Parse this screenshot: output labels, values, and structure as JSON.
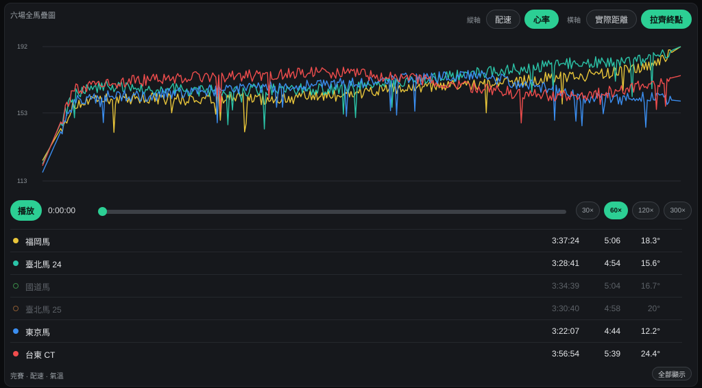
{
  "header": {
    "title": "六場全馬疊圖",
    "y_axis_label": "縱軸",
    "y_options": [
      "配速",
      "心率"
    ],
    "y_active": "心率",
    "x_axis_label": "橫軸",
    "x_options": [
      "實際距離",
      "拉齊終點"
    ],
    "x_active": "拉齊終點"
  },
  "playback": {
    "play_label": "播放",
    "time": "0:00:00",
    "progress": 0,
    "speeds": [
      "30×",
      "60×",
      "120×",
      "300×"
    ],
    "active_speed": "60×"
  },
  "races": [
    {
      "name": "福岡馬",
      "time": "3:37:24",
      "pace": "5:06",
      "temp": "18.3°",
      "color": "#e8c53a",
      "visible": true
    },
    {
      "name": "臺北馬 24",
      "time": "3:28:41",
      "pace": "4:54",
      "temp": "15.6°",
      "color": "#2bc4a8",
      "visible": true
    },
    {
      "name": "國道馬",
      "time": "3:34:39",
      "pace": "5:04",
      "temp": "16.7°",
      "color": "#3a8a48",
      "visible": false
    },
    {
      "name": "臺北馬 25",
      "time": "3:30:40",
      "pace": "4:58",
      "temp": "20°",
      "color": "#8a5a32",
      "visible": false
    },
    {
      "name": "東京馬",
      "time": "3:22:07",
      "pace": "4:44",
      "temp": "12.2°",
      "color": "#3b8ef0",
      "visible": true
    },
    {
      "name": "台東 CT",
      "time": "3:56:54",
      "pace": "5:39",
      "temp": "24.4°",
      "color": "#f04d4d",
      "visible": true
    }
  ],
  "footer": {
    "note": "完賽 · 配速 · 氣溫",
    "show_all": "全部顯示"
  },
  "chart_data": {
    "type": "line",
    "x": [
      0,
      0.05,
      0.1,
      0.15,
      0.2,
      0.25,
      0.3,
      0.35,
      0.4,
      0.45,
      0.5,
      0.55,
      0.6,
      0.65,
      0.7,
      0.75,
      0.8,
      0.85,
      0.9,
      0.95,
      1.0
    ],
    "y_ticks": [
      113,
      153,
      192
    ],
    "ylim": [
      113,
      192
    ],
    "grid": true,
    "series": [
      {
        "name": "福岡馬",
        "color": "#e8c53a",
        "values": [
          125,
          158,
          161,
          162,
          161,
          161,
          162,
          161,
          162,
          163,
          165,
          167,
          168,
          169,
          170,
          172,
          174,
          175,
          177,
          180,
          192
        ]
      },
      {
        "name": "臺北馬 24",
        "color": "#2bc4a8",
        "values": [
          123,
          165,
          169,
          167,
          167,
          166,
          166,
          167,
          167,
          167,
          169,
          171,
          173,
          175,
          177,
          179,
          181,
          183,
          183,
          184,
          192
        ]
      },
      {
        "name": "東京馬",
        "color": "#3b8ef0",
        "values": [
          118,
          160,
          163,
          163,
          164,
          166,
          167,
          168,
          169,
          170,
          171,
          173,
          173,
          175,
          174,
          170,
          167,
          162,
          161,
          162,
          160
        ]
      },
      {
        "name": "台東 CT",
        "color": "#f04d4d",
        "values": [
          122,
          167,
          170,
          172,
          173,
          174,
          175,
          175,
          176,
          177,
          176,
          174,
          172,
          169,
          167,
          164,
          163,
          163,
          166,
          170,
          175
        ]
      }
    ]
  }
}
